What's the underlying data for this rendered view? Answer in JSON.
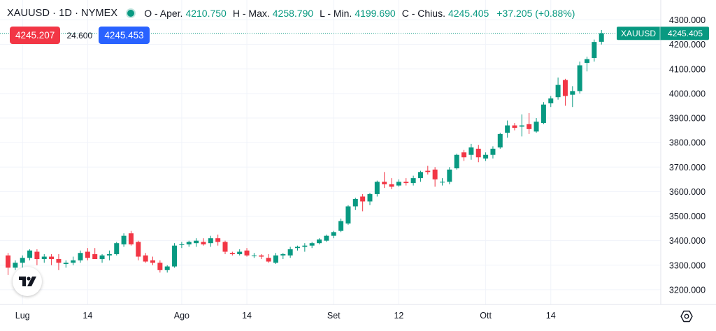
{
  "header": {
    "symbol": "XAUUSD · 1D · NYMEX",
    "open_label": "O - Aper.",
    "open_value": "4210.750",
    "high_label": "H - Max.",
    "high_value": "4258.790",
    "low_label": "L - Min.",
    "low_value": "4199.690",
    "close_label": "C - Chius.",
    "close_value": "4245.405",
    "change": "+37.205 (+0.88%)"
  },
  "trade": {
    "sell_price": "4245.207",
    "spread": "24.600",
    "buy_price": "4245.453"
  },
  "price_label": {
    "symbol": "XAUUSD",
    "value": "4245.405"
  },
  "colors": {
    "up": "#089981",
    "down": "#f23645",
    "accent": "#2962ff"
  },
  "icons": {
    "logo": "tradingview-logo-icon",
    "settings": "settings-gear-icon"
  },
  "chart_data": {
    "type": "candlestick",
    "title": "XAUUSD · 1D · NYMEX",
    "ylim": [
      3150,
      4320
    ],
    "y_ticks": [
      "4300.000",
      "4200.000",
      "4100.000",
      "4000.000",
      "3900.000",
      "3800.000",
      "3700.000",
      "3600.000",
      "3500.000",
      "3400.000",
      "3300.000",
      "3200.000"
    ],
    "x_ticks": [
      {
        "label": "Lug",
        "index": 2
      },
      {
        "label": "14",
        "index": 11
      },
      {
        "label": "Ago",
        "index": 24
      },
      {
        "label": "14",
        "index": 33
      },
      {
        "label": "Set",
        "index": 45
      },
      {
        "label": "12",
        "index": 54
      },
      {
        "label": "Ott",
        "index": 66
      },
      {
        "label": "14",
        "index": 75
      }
    ],
    "last_price": 4245.405,
    "candles": [
      [
        3340,
        3350,
        3260,
        3290
      ],
      [
        3290,
        3320,
        3280,
        3310
      ],
      [
        3310,
        3340,
        3290,
        3330
      ],
      [
        3330,
        3365,
        3320,
        3360
      ],
      [
        3355,
        3365,
        3300,
        3325
      ],
      [
        3325,
        3345,
        3310,
        3335
      ],
      [
        3335,
        3345,
        3300,
        3325
      ],
      [
        3325,
        3345,
        3280,
        3310
      ],
      [
        3305,
        3320,
        3290,
        3310
      ],
      [
        3310,
        3335,
        3300,
        3320
      ],
      [
        3320,
        3360,
        3310,
        3350
      ],
      [
        3355,
        3370,
        3320,
        3330
      ],
      [
        3345,
        3370,
        3325,
        3325
      ],
      [
        3325,
        3345,
        3310,
        3340
      ],
      [
        3340,
        3360,
        3320,
        3345
      ],
      [
        3345,
        3395,
        3340,
        3390
      ],
      [
        3385,
        3430,
        3375,
        3420
      ],
      [
        3430,
        3440,
        3380,
        3385
      ],
      [
        3395,
        3400,
        3320,
        3335
      ],
      [
        3340,
        3350,
        3310,
        3315
      ],
      [
        3320,
        3335,
        3300,
        3310
      ],
      [
        3310,
        3320,
        3270,
        3280
      ],
      [
        3280,
        3300,
        3270,
        3295
      ],
      [
        3295,
        3390,
        3290,
        3380
      ],
      [
        3385,
        3395,
        3370,
        3385
      ],
      [
        3385,
        3400,
        3375,
        3395
      ],
      [
        3390,
        3410,
        3375,
        3400
      ],
      [
        3395,
        3410,
        3380,
        3385
      ],
      [
        3390,
        3420,
        3375,
        3410
      ],
      [
        3410,
        3425,
        3380,
        3395
      ],
      [
        3395,
        3400,
        3345,
        3355
      ],
      [
        3350,
        3355,
        3340,
        3345
      ],
      [
        3345,
        3365,
        3340,
        3355
      ],
      [
        3360,
        3370,
        3335,
        3340
      ],
      [
        3340,
        3350,
        3330,
        3340
      ],
      [
        3340,
        3345,
        3325,
        3335
      ],
      [
        3330,
        3345,
        3310,
        3315
      ],
      [
        3310,
        3350,
        3305,
        3340
      ],
      [
        3340,
        3350,
        3325,
        3345
      ],
      [
        3340,
        3375,
        3330,
        3365
      ],
      [
        3370,
        3380,
        3360,
        3375
      ],
      [
        3375,
        3390,
        3355,
        3380
      ],
      [
        3380,
        3395,
        3370,
        3390
      ],
      [
        3390,
        3410,
        3385,
        3405
      ],
      [
        3400,
        3425,
        3395,
        3420
      ],
      [
        3420,
        3440,
        3410,
        3435
      ],
      [
        3440,
        3490,
        3435,
        3480
      ],
      [
        3470,
        3545,
        3465,
        3540
      ],
      [
        3540,
        3575,
        3525,
        3570
      ],
      [
        3580,
        3590,
        3520,
        3560
      ],
      [
        3560,
        3595,
        3545,
        3590
      ],
      [
        3590,
        3645,
        3580,
        3640
      ],
      [
        3640,
        3680,
        3615,
        3630
      ],
      [
        3630,
        3655,
        3610,
        3620
      ],
      [
        3625,
        3650,
        3620,
        3640
      ],
      [
        3640,
        3655,
        3625,
        3635
      ],
      [
        3635,
        3665,
        3625,
        3655
      ],
      [
        3655,
        3685,
        3640,
        3680
      ],
      [
        3685,
        3705,
        3670,
        3680
      ],
      [
        3690,
        3700,
        3620,
        3650
      ],
      [
        3640,
        3655,
        3625,
        3640
      ],
      [
        3640,
        3700,
        3630,
        3690
      ],
      [
        3695,
        3755,
        3690,
        3750
      ],
      [
        3760,
        3770,
        3725,
        3740
      ],
      [
        3750,
        3795,
        3730,
        3780
      ],
      [
        3775,
        3790,
        3720,
        3740
      ],
      [
        3735,
        3760,
        3725,
        3750
      ],
      [
        3750,
        3785,
        3735,
        3775
      ],
      [
        3780,
        3840,
        3775,
        3835
      ],
      [
        3840,
        3890,
        3820,
        3870
      ],
      [
        3870,
        3880,
        3850,
        3860
      ],
      [
        3865,
        3915,
        3825,
        3870
      ],
      [
        3875,
        3920,
        3835,
        3855
      ],
      [
        3845,
        3900,
        3840,
        3885
      ],
      [
        3880,
        3965,
        3875,
        3955
      ],
      [
        3960,
        3990,
        3945,
        3980
      ],
      [
        3985,
        4065,
        3975,
        4035
      ],
      [
        4055,
        4060,
        3950,
        3990
      ],
      [
        3995,
        4030,
        3945,
        4010
      ],
      [
        4010,
        4130,
        4000,
        4115
      ],
      [
        4125,
        4150,
        4090,
        4140
      ],
      [
        4145,
        4220,
        4130,
        4210
      ],
      [
        4210.75,
        4258.79,
        4199.69,
        4245.405
      ]
    ]
  }
}
